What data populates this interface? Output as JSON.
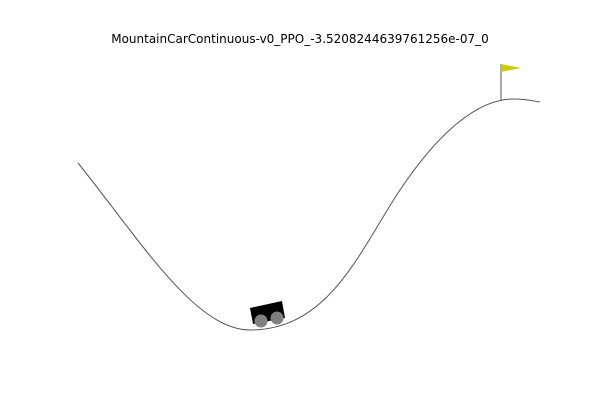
{
  "title": "MountainCarContinuous-v0_PPO_-3.5208244639761256e-07_0",
  "colors": {
    "background": "#ffffff",
    "track": "#555555",
    "car_body": "#000000",
    "wheels": "#808080",
    "flagpole": "#555555",
    "flag": "#cccc00"
  },
  "icons": {
    "car": "mountain-car",
    "flag": "goal-flag"
  }
}
